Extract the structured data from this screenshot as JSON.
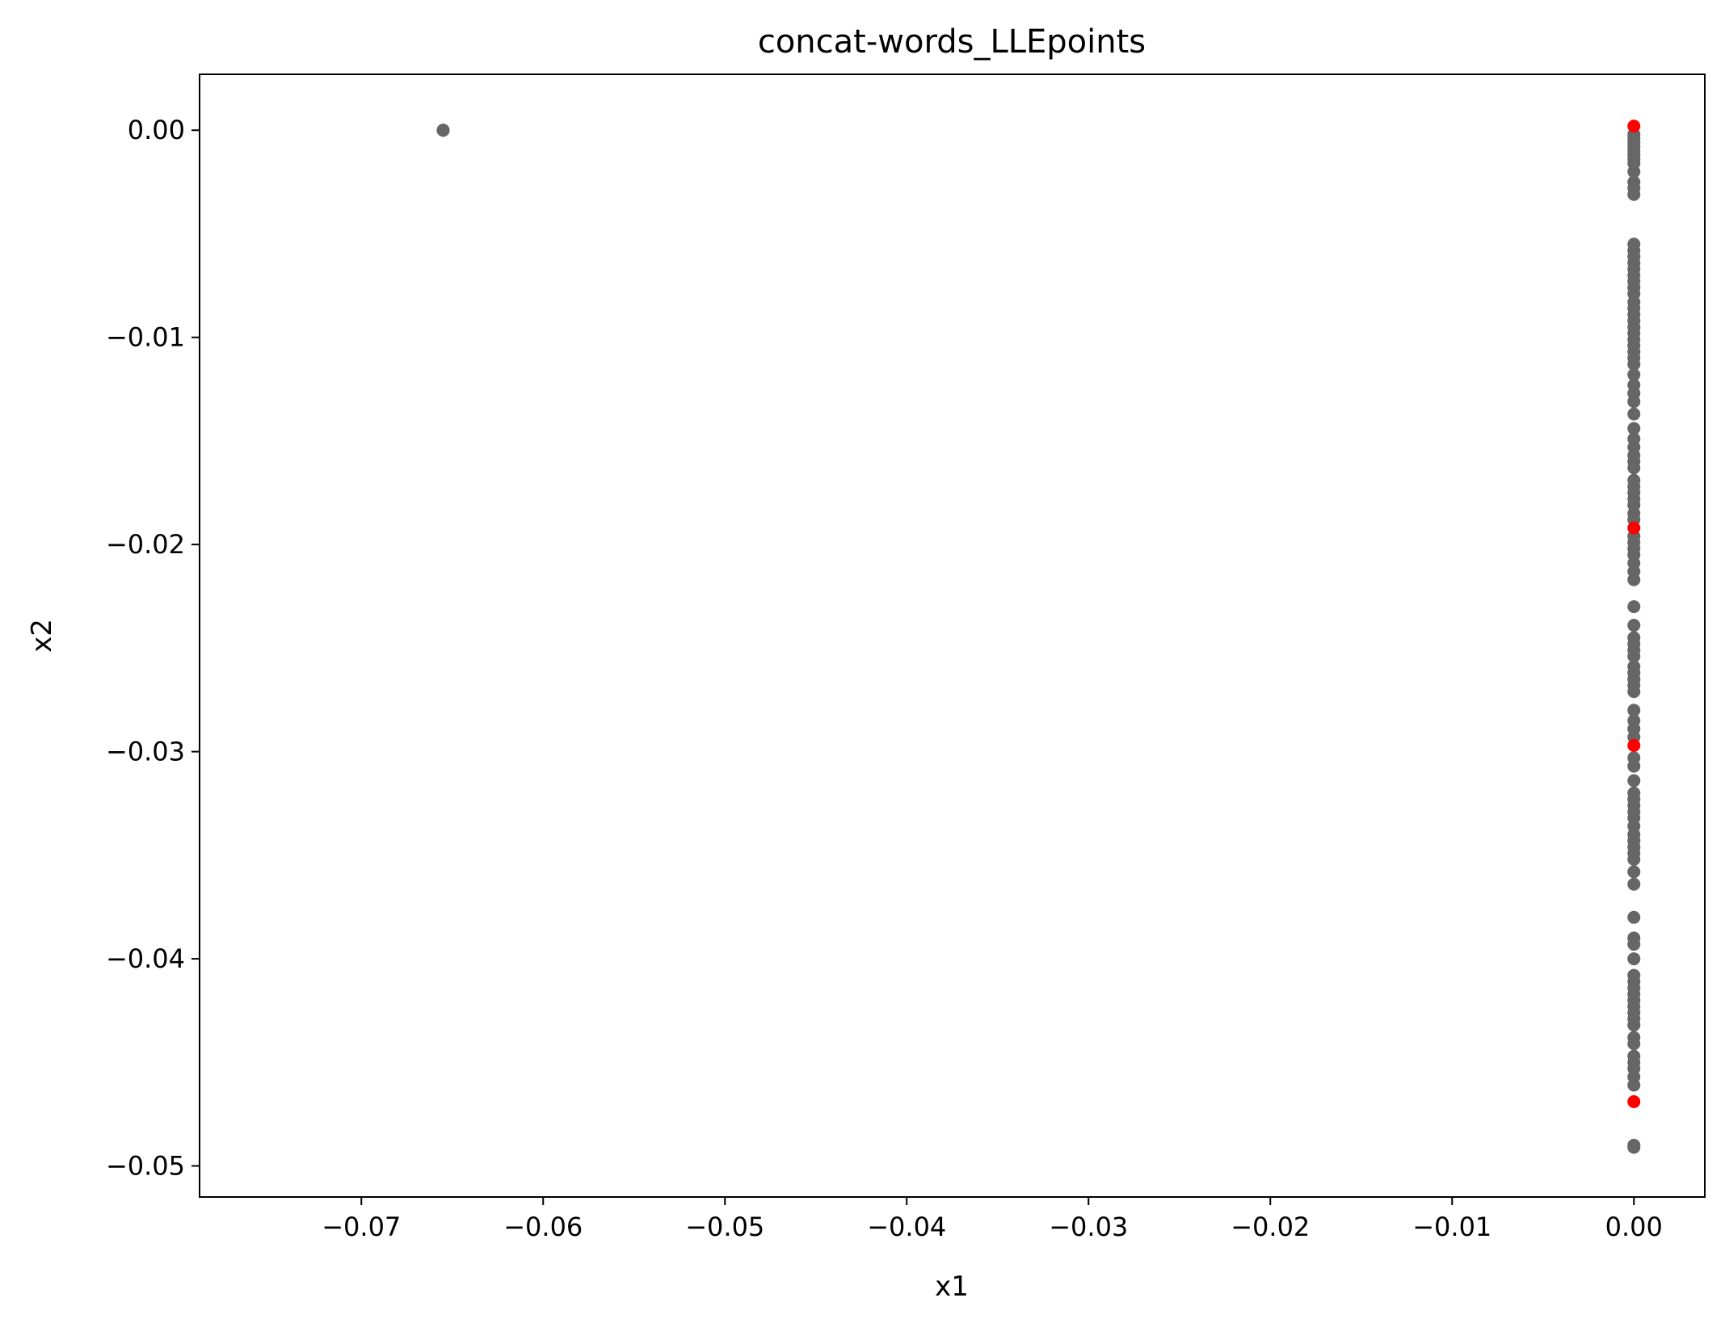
{
  "chart_data": {
    "type": "scatter",
    "title": "concat-words_LLEpoints",
    "xlabel": "x1",
    "ylabel": "x2",
    "xlim": [
      -0.0789,
      0.0039
    ],
    "ylim": [
      -0.0515,
      0.0027
    ],
    "x_ticks": [
      -0.07,
      -0.06,
      -0.05,
      -0.04,
      -0.03,
      -0.02,
      -0.01,
      0.0
    ],
    "y_ticks": [
      0.0,
      -0.01,
      -0.02,
      -0.03,
      -0.04,
      -0.05
    ],
    "x_tick_labels": [
      "−0.07",
      "−0.06",
      "−0.05",
      "−0.04",
      "−0.03",
      "−0.02",
      "−0.01",
      "0.00"
    ],
    "y_tick_labels": [
      "0.00",
      "−0.01",
      "−0.02",
      "−0.03",
      "−0.04",
      "−0.05"
    ],
    "grid": false,
    "colors": {
      "gray_points": "#666666",
      "red_points": "#ff0000",
      "axes": "#000000",
      "background": "#ffffff"
    },
    "series": [
      {
        "color": "gray_points",
        "points": [
          [
            -0.0655,
            0.0
          ],
          [
            -0.0655,
            0.0
          ],
          [
            -0.0655,
            0.0
          ],
          [
            0.0,
            -0.0002
          ],
          [
            0.0,
            -0.0004
          ],
          [
            0.0,
            -0.0006
          ],
          [
            0.0,
            -0.0008
          ],
          [
            0.0,
            -0.001
          ],
          [
            0.0,
            -0.0012
          ],
          [
            0.0,
            -0.0014
          ],
          [
            0.0,
            -0.0016
          ],
          [
            0.0,
            -0.002
          ],
          [
            0.0,
            -0.0025
          ],
          [
            0.0,
            -0.0028
          ],
          [
            0.0,
            -0.0031
          ],
          [
            0.0,
            -0.0055
          ],
          [
            0.0,
            -0.0058
          ],
          [
            0.0,
            -0.0061
          ],
          [
            0.0,
            -0.0064
          ],
          [
            0.0,
            -0.0067
          ],
          [
            0.0,
            -0.007
          ],
          [
            0.0,
            -0.0073
          ],
          [
            0.0,
            -0.0076
          ],
          [
            0.0,
            -0.0079
          ],
          [
            0.0,
            -0.0083
          ],
          [
            0.0,
            -0.0086
          ],
          [
            0.0,
            -0.0089
          ],
          [
            0.0,
            -0.0092
          ],
          [
            0.0,
            -0.0095
          ],
          [
            0.0,
            -0.0098
          ],
          [
            0.0,
            -0.0101
          ],
          [
            0.0,
            -0.0104
          ],
          [
            0.0,
            -0.0107
          ],
          [
            0.0,
            -0.011
          ],
          [
            0.0,
            -0.0113
          ],
          [
            0.0,
            -0.0118
          ],
          [
            0.0,
            -0.0123
          ],
          [
            0.0,
            -0.0127
          ],
          [
            0.0,
            -0.0131
          ],
          [
            0.0,
            -0.0137
          ],
          [
            0.0,
            -0.0144
          ],
          [
            0.0,
            -0.0149
          ],
          [
            0.0,
            -0.0153
          ],
          [
            0.0,
            -0.0157
          ],
          [
            0.0,
            -0.016
          ],
          [
            0.0,
            -0.0163
          ],
          [
            0.0,
            -0.0169
          ],
          [
            0.0,
            -0.0172
          ],
          [
            0.0,
            -0.0175
          ],
          [
            0.0,
            -0.0178
          ],
          [
            0.0,
            -0.0181
          ],
          [
            0.0,
            -0.0185
          ],
          [
            0.0,
            -0.0188
          ],
          [
            0.0,
            -0.0196
          ],
          [
            0.0,
            -0.0199
          ],
          [
            0.0,
            -0.0202
          ],
          [
            0.0,
            -0.0205
          ],
          [
            0.0,
            -0.0209
          ],
          [
            0.0,
            -0.0213
          ],
          [
            0.0,
            -0.0217
          ],
          [
            0.0,
            -0.023
          ],
          [
            0.0,
            -0.0239
          ],
          [
            0.0,
            -0.0245
          ],
          [
            0.0,
            -0.0248
          ],
          [
            0.0,
            -0.0251
          ],
          [
            0.0,
            -0.0254
          ],
          [
            0.0,
            -0.0259
          ],
          [
            0.0,
            -0.0262
          ],
          [
            0.0,
            -0.0265
          ],
          [
            0.0,
            -0.0268
          ],
          [
            0.0,
            -0.0271
          ],
          [
            0.0,
            -0.028
          ],
          [
            0.0,
            -0.0285
          ],
          [
            0.0,
            -0.0289
          ],
          [
            0.0,
            -0.0293
          ],
          [
            0.0,
            -0.0303
          ],
          [
            0.0,
            -0.0307
          ],
          [
            0.0,
            -0.0314
          ],
          [
            0.0,
            -0.032
          ],
          [
            0.0,
            -0.0323
          ],
          [
            0.0,
            -0.0326
          ],
          [
            0.0,
            -0.0329
          ],
          [
            0.0,
            -0.0332
          ],
          [
            0.0,
            -0.0336
          ],
          [
            0.0,
            -0.034
          ],
          [
            0.0,
            -0.0343
          ],
          [
            0.0,
            -0.0346
          ],
          [
            0.0,
            -0.0349
          ],
          [
            0.0,
            -0.0352
          ],
          [
            0.0,
            -0.0358
          ],
          [
            0.0,
            -0.0364
          ],
          [
            0.0,
            -0.038
          ],
          [
            0.0,
            -0.039
          ],
          [
            0.0,
            -0.0393
          ],
          [
            0.0,
            -0.04
          ],
          [
            0.0,
            -0.0408
          ],
          [
            0.0,
            -0.0411
          ],
          [
            0.0,
            -0.0414
          ],
          [
            0.0,
            -0.0417
          ],
          [
            0.0,
            -0.042
          ],
          [
            0.0,
            -0.0423
          ],
          [
            0.0,
            -0.0426
          ],
          [
            0.0,
            -0.0429
          ],
          [
            0.0,
            -0.0432
          ],
          [
            0.0,
            -0.0438
          ],
          [
            0.0,
            -0.0441
          ],
          [
            0.0,
            -0.0447
          ],
          [
            0.0,
            -0.045
          ],
          [
            0.0,
            -0.0453
          ],
          [
            0.0,
            -0.0457
          ],
          [
            0.0,
            -0.0461
          ],
          [
            0.0,
            -0.049
          ],
          [
            0.0,
            -0.0491
          ]
        ]
      },
      {
        "color": "red_points",
        "points": [
          [
            0.0,
            0.0002
          ],
          [
            0.0,
            -0.0192
          ],
          [
            0.0,
            -0.0297
          ],
          [
            0.0,
            -0.0469
          ]
        ]
      }
    ]
  }
}
